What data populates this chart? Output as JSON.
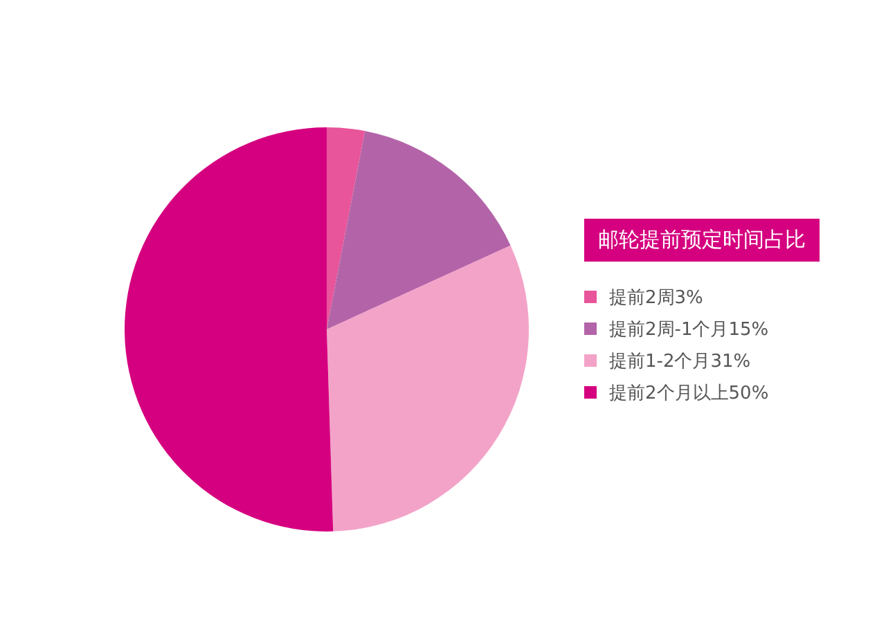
{
  "chart_data": {
    "type": "pie",
    "legend_title": "邮轮提前预定时间占比",
    "categories": [
      "提前2周3%",
      "提前2周-1个月15%",
      "提前1-2个月31%",
      "提前2个月以上50%"
    ],
    "values": [
      3,
      15,
      31,
      50
    ],
    "colors": [
      "#e8559a",
      "#b364a8",
      "#f3a3c8",
      "#d5007f"
    ],
    "legend": "right"
  }
}
